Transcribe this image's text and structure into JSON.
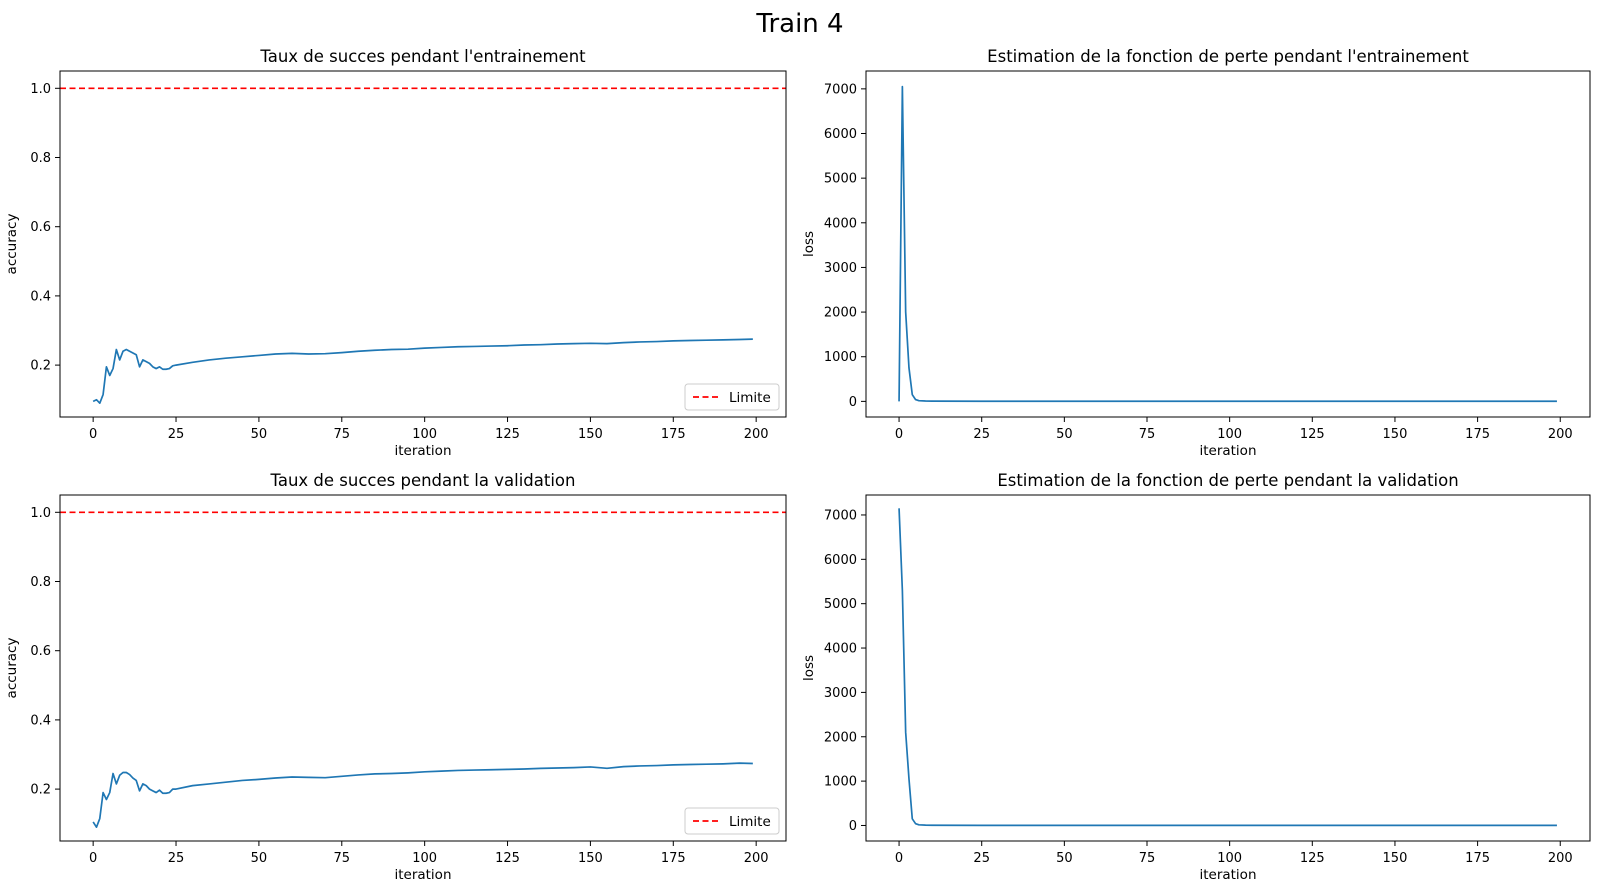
{
  "figure": {
    "title": "Train 4"
  },
  "chart_data": [
    {
      "type": "line",
      "title": "Taux de succes pendant l'entrainement",
      "xlabel": "iteration",
      "ylabel": "accuracy",
      "xlim": [
        -10,
        209
      ],
      "ylim": [
        0.05,
        1.05
      ],
      "xticks": [
        0,
        25,
        50,
        75,
        100,
        125,
        150,
        175,
        200
      ],
      "yticks": [
        0.2,
        0.4,
        0.6,
        0.8,
        1.0
      ],
      "ytick_decimals": 1,
      "grid": false,
      "legend": {
        "position": "lower-right",
        "entries": [
          "Limite"
        ]
      },
      "hline": {
        "y": 1.0,
        "label": "Limite",
        "color": "#ff0000",
        "style": "dashed"
      },
      "series": [
        {
          "color": "#1f77b4",
          "x": [
            0,
            1,
            2,
            3,
            4,
            5,
            6,
            7,
            8,
            9,
            10,
            11,
            12,
            13,
            14,
            15,
            16,
            17,
            18,
            19,
            20,
            21,
            22,
            23,
            24,
            25,
            30,
            35,
            40,
            45,
            50,
            55,
            60,
            65,
            70,
            75,
            80,
            85,
            90,
            95,
            100,
            105,
            110,
            115,
            120,
            125,
            130,
            135,
            140,
            145,
            150,
            155,
            160,
            165,
            170,
            175,
            180,
            185,
            190,
            195,
            199
          ],
          "y": [
            0.095,
            0.1,
            0.09,
            0.115,
            0.195,
            0.17,
            0.19,
            0.245,
            0.215,
            0.24,
            0.245,
            0.24,
            0.235,
            0.23,
            0.195,
            0.215,
            0.21,
            0.205,
            0.195,
            0.19,
            0.195,
            0.188,
            0.188,
            0.19,
            0.198,
            0.2,
            0.208,
            0.215,
            0.22,
            0.224,
            0.228,
            0.232,
            0.234,
            0.232,
            0.233,
            0.236,
            0.24,
            0.243,
            0.245,
            0.246,
            0.249,
            0.251,
            0.253,
            0.254,
            0.255,
            0.256,
            0.258,
            0.259,
            0.261,
            0.262,
            0.263,
            0.262,
            0.265,
            0.267,
            0.268,
            0.27,
            0.271,
            0.272,
            0.273,
            0.274,
            0.275
          ]
        }
      ]
    },
    {
      "type": "line",
      "title": "Estimation de la fonction de perte pendant l'entrainement",
      "xlabel": "iteration",
      "ylabel": "loss",
      "xlim": [
        -10,
        209
      ],
      "ylim": [
        -350,
        7400
      ],
      "xticks": [
        0,
        25,
        50,
        75,
        100,
        125,
        150,
        175,
        200
      ],
      "yticks": [
        0,
        1000,
        2000,
        3000,
        4000,
        5000,
        6000,
        7000
      ],
      "ytick_decimals": 0,
      "grid": false,
      "series": [
        {
          "color": "#1f77b4",
          "x": [
            0,
            1,
            2,
            3,
            4,
            5,
            6,
            8,
            10,
            25,
            50,
            100,
            150,
            199
          ],
          "y": [
            0,
            7050,
            2000,
            750,
            150,
            40,
            15,
            8,
            5,
            3,
            2,
            2,
            2,
            2
          ]
        }
      ]
    },
    {
      "type": "line",
      "title": "Taux de succes pendant la validation",
      "xlabel": "iteration",
      "ylabel": "accuracy",
      "xlim": [
        -10,
        209
      ],
      "ylim": [
        0.05,
        1.05
      ],
      "xticks": [
        0,
        25,
        50,
        75,
        100,
        125,
        150,
        175,
        200
      ],
      "yticks": [
        0.2,
        0.4,
        0.6,
        0.8,
        1.0
      ],
      "ytick_decimals": 1,
      "grid": false,
      "legend": {
        "position": "lower-right",
        "entries": [
          "Limite"
        ]
      },
      "hline": {
        "y": 1.0,
        "label": "Limite",
        "color": "#ff0000",
        "style": "dashed"
      },
      "series": [
        {
          "color": "#1f77b4",
          "x": [
            0,
            1,
            2,
            3,
            4,
            5,
            6,
            7,
            8,
            9,
            10,
            11,
            12,
            13,
            14,
            15,
            16,
            17,
            18,
            19,
            20,
            21,
            22,
            23,
            24,
            25,
            30,
            35,
            40,
            45,
            50,
            55,
            60,
            65,
            70,
            75,
            80,
            85,
            90,
            95,
            100,
            105,
            110,
            115,
            120,
            125,
            130,
            135,
            140,
            145,
            150,
            155,
            160,
            165,
            170,
            175,
            180,
            185,
            190,
            195,
            199
          ],
          "y": [
            0.105,
            0.09,
            0.115,
            0.19,
            0.17,
            0.19,
            0.245,
            0.215,
            0.24,
            0.248,
            0.248,
            0.242,
            0.232,
            0.225,
            0.195,
            0.215,
            0.21,
            0.2,
            0.195,
            0.19,
            0.197,
            0.188,
            0.188,
            0.19,
            0.2,
            0.2,
            0.21,
            0.215,
            0.22,
            0.225,
            0.228,
            0.232,
            0.235,
            0.234,
            0.233,
            0.237,
            0.241,
            0.244,
            0.245,
            0.247,
            0.25,
            0.252,
            0.254,
            0.255,
            0.256,
            0.257,
            0.258,
            0.26,
            0.261,
            0.262,
            0.264,
            0.26,
            0.265,
            0.267,
            0.268,
            0.27,
            0.271,
            0.272,
            0.273,
            0.275,
            0.274
          ]
        }
      ]
    },
    {
      "type": "line",
      "title": "Estimation de la fonction de perte pendant la validation",
      "xlabel": "iteration",
      "ylabel": "loss",
      "xlim": [
        -10,
        209
      ],
      "ylim": [
        -350,
        7450
      ],
      "xticks": [
        0,
        25,
        50,
        75,
        100,
        125,
        150,
        175,
        200
      ],
      "yticks": [
        0,
        1000,
        2000,
        3000,
        4000,
        5000,
        6000,
        7000
      ],
      "ytick_decimals": 0,
      "grid": false,
      "series": [
        {
          "color": "#1f77b4",
          "x": [
            0,
            1,
            2,
            3,
            4,
            5,
            6,
            8,
            10,
            25,
            50,
            100,
            150,
            199
          ],
          "y": [
            7150,
            5300,
            2100,
            1050,
            150,
            40,
            15,
            8,
            5,
            3,
            2,
            2,
            2,
            2
          ]
        }
      ]
    }
  ]
}
